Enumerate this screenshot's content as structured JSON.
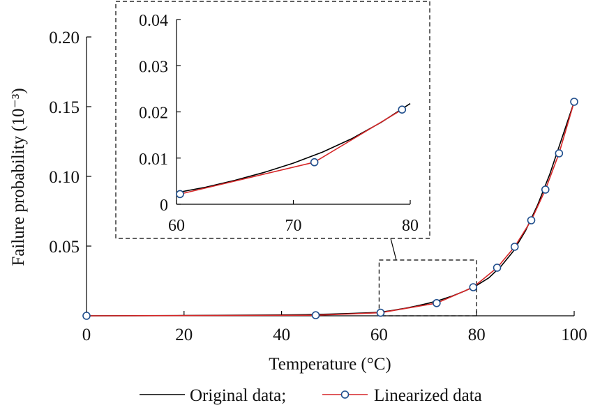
{
  "chart_data": {
    "type": "line",
    "xlabel": "Temperature (°C)",
    "ylabel": "Failure probability (10⁻³)",
    "main": {
      "xlim": [
        0,
        100
      ],
      "ylim": [
        0,
        0.2
      ],
      "xticks": [
        0,
        20,
        40,
        60,
        80,
        100
      ],
      "xtick_labels": [
        "0",
        "20",
        "40",
        "60",
        "80",
        "100"
      ],
      "yticks": [
        0.05,
        0.1,
        0.15,
        0.2
      ],
      "ytick_labels": [
        "0.05",
        "0.10",
        "0.15",
        "0.20"
      ]
    },
    "inset": {
      "xlim": [
        60,
        80
      ],
      "ylim": [
        0,
        0.04
      ],
      "xticks": [
        60,
        70,
        80
      ],
      "xtick_labels": [
        "60",
        "70",
        "80"
      ],
      "yticks": [
        0,
        0.01,
        0.02,
        0.03,
        0.04
      ],
      "ytick_labels": [
        "0",
        "0.01",
        "0.02",
        "0.03",
        "0.04"
      ]
    },
    "zoom_region": {
      "x": [
        60,
        80
      ],
      "y": [
        0,
        0.04
      ]
    },
    "series": [
      {
        "name": "Original data;",
        "color": "#000000",
        "style": "line",
        "x": [
          0,
          10,
          20,
          30,
          40,
          45,
          50,
          55,
          60,
          62.5,
          65,
          67.5,
          70,
          72.5,
          75,
          77.5,
          80,
          82.5,
          85,
          87.5,
          90,
          92.5,
          95,
          97.5,
          100
        ],
        "y": [
          0.0,
          0.0001,
          0.0002,
          0.0004,
          0.0006,
          0.0008,
          0.0012,
          0.0018,
          0.0025,
          0.0037,
          0.0052,
          0.0069,
          0.0089,
          0.0113,
          0.0142,
          0.0177,
          0.0218,
          0.0272,
          0.0355,
          0.0462,
          0.0608,
          0.0795,
          0.1015,
          0.1275,
          0.1535
        ]
      },
      {
        "name": "Linearized data",
        "color": "#d62728",
        "style": "line-marker",
        "marker": "circle",
        "x": [
          0,
          47,
          60.3,
          71.8,
          79.3,
          84.2,
          87.8,
          91.2,
          94.1,
          96.9,
          100
        ],
        "y": [
          0.0,
          0.0004,
          0.0022,
          0.0091,
          0.0205,
          0.0345,
          0.0495,
          0.0685,
          0.0905,
          0.1165,
          0.1535
        ]
      }
    ],
    "legend": {
      "position": "bottom-center"
    }
  }
}
